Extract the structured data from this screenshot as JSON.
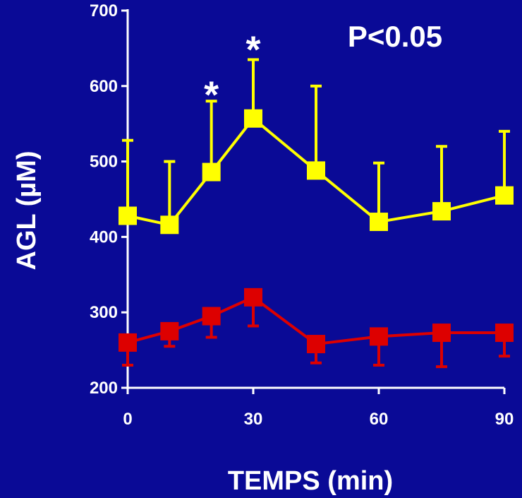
{
  "chart_data": {
    "type": "line",
    "xlabel": "TEMPS (min)",
    "ylabel": "AGL (µM)",
    "xlim": [
      0,
      90
    ],
    "ylim": [
      200,
      700
    ],
    "xticks": [
      0,
      30,
      60,
      90
    ],
    "yticks": [
      200,
      300,
      400,
      500,
      600,
      700
    ],
    "grid": false,
    "series": [
      {
        "color": "#ffff00",
        "x": [
          0,
          10,
          20,
          30,
          45,
          60,
          75,
          90
        ],
        "values": [
          428,
          416,
          486,
          557,
          488,
          420,
          434,
          455
        ],
        "error_upper": [
          528,
          500,
          580,
          635,
          600,
          498,
          520,
          540
        ]
      },
      {
        "color": "#dd0000",
        "x": [
          0,
          10,
          20,
          30,
          45,
          60,
          75,
          90
        ],
        "values": [
          260,
          275,
          295,
          320,
          258,
          268,
          273,
          273
        ],
        "error_lower": [
          230,
          255,
          267,
          282,
          233,
          230,
          228,
          242
        ]
      }
    ],
    "annotations": [
      {
        "text": "*",
        "x": 20,
        "y": 605
      },
      {
        "text": "*",
        "x": 30,
        "y": 665
      },
      {
        "text": "P<0.05"
      }
    ]
  }
}
